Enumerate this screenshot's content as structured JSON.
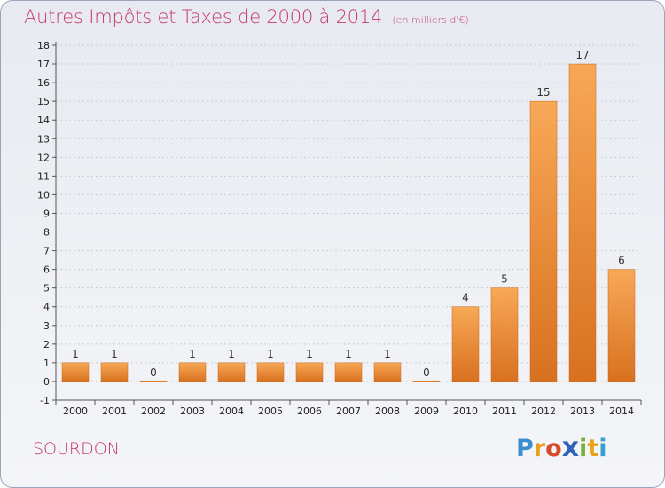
{
  "header": {
    "title": "Autres Impôts et Taxes de 2000 à 2014",
    "unit": "(en milliers d'€)"
  },
  "footer": {
    "town": "SOURDON",
    "logo_text": "Proxiti",
    "logo_letters": [
      {
        "ch": "P",
        "color": "#3b8fd1"
      },
      {
        "ch": "r",
        "color": "#e8a21a"
      },
      {
        "ch": "o",
        "color": "#d94a2b"
      },
      {
        "ch": "x",
        "color": "#2e63b8"
      },
      {
        "ch": "i",
        "color": "#7bb33a"
      },
      {
        "ch": "t",
        "color": "#e8a21a"
      },
      {
        "ch": "i",
        "color": "#3ba0cf"
      }
    ]
  },
  "colors": {
    "title": "#c5386a",
    "bar_light": "#f7a857",
    "bar_dark": "#d8711f",
    "axis": "#555555",
    "grid": "#c8ccd6"
  },
  "chart_data": {
    "type": "bar",
    "categories": [
      "2000",
      "2001",
      "2002",
      "2003",
      "2004",
      "2005",
      "2006",
      "2007",
      "2008",
      "2009",
      "2010",
      "2011",
      "2012",
      "2013",
      "2014"
    ],
    "values": [
      1,
      1,
      0,
      1,
      1,
      1,
      1,
      1,
      1,
      0,
      4,
      5,
      15,
      17,
      6
    ],
    "value_labels": [
      "1",
      "1",
      "0",
      "1",
      "1",
      "1",
      "1",
      "1",
      "1",
      "0",
      "4",
      "5",
      "15",
      "17",
      "6"
    ],
    "title": "Autres Impôts et Taxes de 2000 à 2014",
    "xlabel": "",
    "ylabel": "",
    "ylim": [
      -1,
      18
    ],
    "yticks": [
      -1,
      0,
      1,
      2,
      3,
      4,
      5,
      6,
      7,
      8,
      9,
      10,
      11,
      12,
      13,
      14,
      15,
      16,
      17,
      18
    ],
    "grid": "horizontal",
    "legend": "none"
  }
}
